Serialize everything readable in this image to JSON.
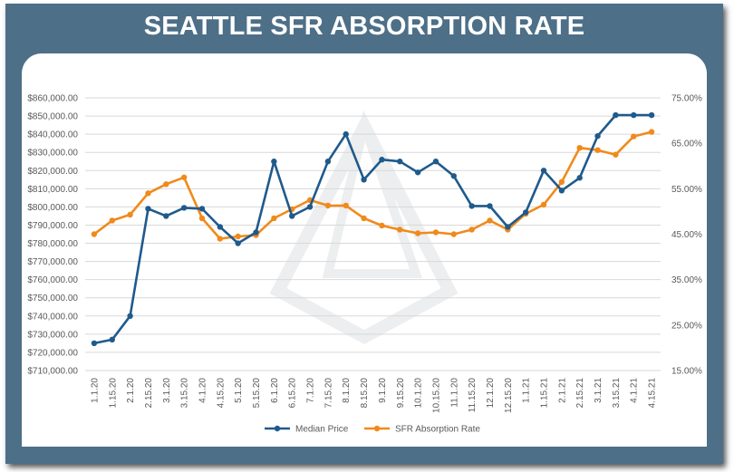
{
  "title": "SEATTLE SFR ABSORPTION RATE",
  "colors": {
    "background": "#4d6f87",
    "panel": "#ffffff",
    "median_price": "#1f5a8c",
    "absorption": "#f08a1c",
    "grid": "#d9d9d9",
    "text": "#595959"
  },
  "chart_data": {
    "type": "line",
    "title": "SEATTLE SFR ABSORPTION RATE",
    "categories": [
      "1.1.20",
      "1.15.20",
      "2.1.20",
      "2.15.20",
      "3.1.20",
      "3.15.20",
      "4.1.20",
      "4.15.20",
      "5.1.20",
      "5.15.20",
      "6.1.20",
      "6.15.20",
      "7.1.20",
      "7.15.20",
      "8.1.20",
      "8.15.20",
      "9.1.20",
      "9.15.20",
      "10.1.20",
      "10.15.20",
      "11.1.20",
      "11.15.20",
      "12.1.20",
      "12.15.20",
      "1.1.21",
      "1.15.21",
      "2.1.21",
      "2.15.21",
      "3.1.21",
      "3.15.21",
      "4.1.21",
      "4.15.21"
    ],
    "y_left": {
      "ylim": [
        710000,
        860000
      ],
      "ticks": [
        "$710,000.00",
        "$720,000.00",
        "$730,000.00",
        "$740,000.00",
        "$750,000.00",
        "$760,000.00",
        "$770,000.00",
        "$780,000.00",
        "$790,000.00",
        "$800,000.00",
        "$810,000.00",
        "$820,000.00",
        "$830,000.00",
        "$840,000.00",
        "$850,000.00",
        "$860,000.00"
      ]
    },
    "y_right": {
      "ylim": [
        15,
        75
      ],
      "ticks": [
        "15.00%",
        "25.00%",
        "35.00%",
        "45.00%",
        "55.00%",
        "65.00%",
        "75.00%"
      ]
    },
    "grid": true,
    "legend_position": "bottom",
    "series": [
      {
        "name": "Median Price",
        "axis": "left",
        "color": "#1f5a8c",
        "values": [
          725000,
          727000,
          740000,
          799000,
          795000,
          799500,
          799000,
          789000,
          780000,
          786000,
          825000,
          795000,
          800000,
          825000,
          840000,
          815000,
          826000,
          825000,
          819000,
          825000,
          817000,
          800500,
          800500,
          789000,
          797000,
          820000,
          809000,
          816000,
          839000,
          850500,
          850500,
          850500
        ]
      },
      {
        "name": "SFR Absorption Rate",
        "axis": "right",
        "color": "#f08a1c",
        "values": [
          45.0,
          48.0,
          49.3,
          54.0,
          56.0,
          57.5,
          48.5,
          44.0,
          44.5,
          44.8,
          48.5,
          50.5,
          52.5,
          51.3,
          51.3,
          48.5,
          46.9,
          46.0,
          45.2,
          45.4,
          45.0,
          46.0,
          48.0,
          46.0,
          49.5,
          51.5,
          56.5,
          64.0,
          63.5,
          62.5,
          66.5,
          67.5
        ]
      }
    ]
  }
}
